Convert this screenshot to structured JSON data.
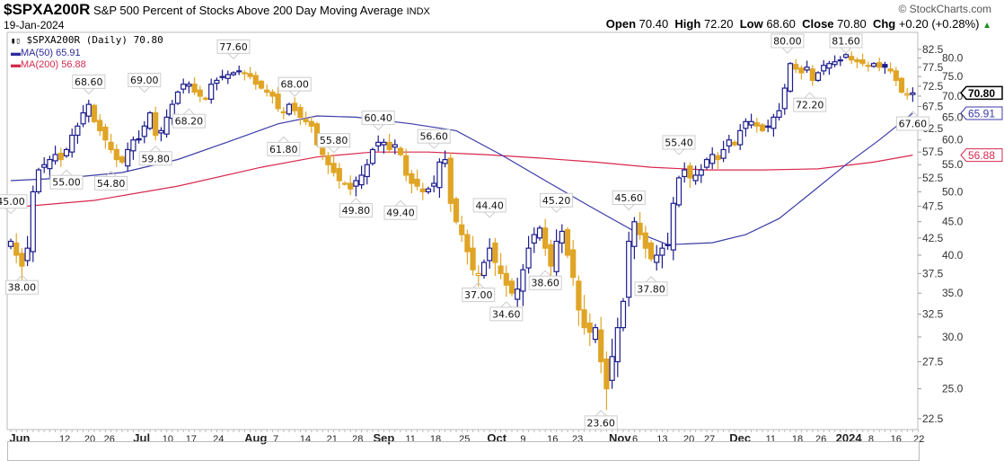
{
  "header": {
    "symbol": "$SPXA200R",
    "description": "S&P 500 Percent of Stocks Above 200 Day Moving Average",
    "exchange": "INDX",
    "date": "19-Jan-2024",
    "copyright": "© StockCharts.com",
    "open_label": "Open",
    "open": "70.40",
    "high_label": "High",
    "high": "72.20",
    "low_label": "Low",
    "low": "68.60",
    "close_label": "Close",
    "close": "70.80",
    "chg_label": "Chg",
    "chg": "+0.20 (+0.28%)",
    "chg_arrow": "▲"
  },
  "legend": {
    "price": "$SPXA200R (Daily) 70.80",
    "ma50": "MA(50) 65.91",
    "ma200": "MA(200) 56.88"
  },
  "colors": {
    "up": "#1c1c8c",
    "down": "#e0a526",
    "ma50": "#3b3ba8",
    "ma200": "#d9284f"
  },
  "chart_data": {
    "type": "candlestick",
    "title": "$SPXA200R S&P 500 Percent of Stocks Above 200 Day Moving Average",
    "yscale": "log",
    "ylim": [
      21.5,
      84
    ],
    "yticks": [
      "82.5",
      "80.0",
      "77.5",
      "75.0",
      "72.5",
      "70.0",
      "67.5",
      "65.0",
      "62.5",
      "60.0",
      "57.5",
      "55.0",
      "52.5",
      "50.0",
      "47.5",
      "45.0",
      "42.5",
      "40.0",
      "37.5",
      "35.0",
      "32.5",
      "30.0",
      "27.5",
      "25.0",
      "22.5"
    ],
    "closes": [
      42,
      40,
      38.5,
      41,
      50,
      54,
      55,
      56,
      57,
      56,
      58,
      61,
      63,
      66,
      68,
      64,
      62,
      60,
      58,
      56,
      55.5,
      58,
      60,
      60,
      63,
      66,
      61,
      62,
      65,
      68,
      71,
      73,
      73,
      71,
      70,
      69.5,
      73,
      74,
      75,
      75.5,
      76,
      76.5,
      76,
      75,
      73,
      72,
      71,
      70,
      67,
      66,
      68,
      66.5,
      65,
      64,
      63,
      59,
      57,
      55,
      53.5,
      52,
      51.5,
      50.5,
      52,
      53,
      55,
      58,
      59.5,
      59.5,
      58,
      59,
      57,
      53,
      51.5,
      51,
      50,
      50.5,
      51.5,
      55.5,
      56,
      48,
      45,
      43,
      40.5,
      38,
      37.5,
      39,
      41,
      39,
      37.5,
      36,
      35,
      35.5,
      38,
      41,
      43,
      44,
      41,
      38.5,
      42,
      43.5,
      40,
      37,
      33,
      31,
      30.5,
      31,
      27.5,
      25,
      28,
      31,
      34,
      42,
      45,
      43,
      41,
      39.5,
      40,
      41,
      41.5,
      48,
      52.5,
      54,
      52.5,
      53,
      54,
      56,
      57,
      56,
      58,
      60,
      59,
      62,
      64,
      64,
      63,
      62,
      63,
      65,
      66.5,
      72,
      78.5,
      77,
      76,
      77.5,
      74,
      76,
      78,
      78.5,
      79,
      79.5,
      81,
      79.5,
      79,
      78.5,
      78,
      78.5,
      77.5,
      77.5,
      76.5,
      74,
      71,
      70.6,
      70.8
    ],
    "last_bar": {
      "open": 70.4,
      "high": 72.2,
      "low": 68.6,
      "close": 70.8
    },
    "ma50": [
      [
        0,
        52
      ],
      [
        10,
        52.5
      ],
      [
        20,
        53.5
      ],
      [
        30,
        56
      ],
      [
        40,
        60
      ],
      [
        48,
        63.5
      ],
      [
        55,
        65.3
      ],
      [
        62,
        65
      ],
      [
        72,
        63.5
      ],
      [
        80,
        62
      ],
      [
        88,
        57
      ],
      [
        96,
        52
      ],
      [
        104,
        47.5
      ],
      [
        112,
        43.5
      ],
      [
        118,
        41.5
      ],
      [
        126,
        41.8
      ],
      [
        132,
        43
      ],
      [
        138,
        45.5
      ],
      [
        144,
        50
      ],
      [
        150,
        55
      ],
      [
        156,
        60
      ],
      [
        162,
        65.91
      ]
    ],
    "ma200": [
      [
        0,
        47.3
      ],
      [
        15,
        48.5
      ],
      [
        30,
        51
      ],
      [
        45,
        54.5
      ],
      [
        55,
        56.5
      ],
      [
        65,
        57.5
      ],
      [
        75,
        57.5
      ],
      [
        85,
        57
      ],
      [
        95,
        56.3
      ],
      [
        105,
        55.5
      ],
      [
        115,
        54.5
      ],
      [
        125,
        54
      ],
      [
        135,
        54
      ],
      [
        145,
        54.2
      ],
      [
        155,
        55.5
      ],
      [
        162,
        56.88
      ]
    ],
    "annotations": [
      {
        "i": 0,
        "v": 45.0,
        "label": "45.00",
        "pos": "above"
      },
      {
        "i": 2,
        "v": 38.0,
        "label": "38.00",
        "pos": "below"
      },
      {
        "i": 10,
        "v": 55.0,
        "label": "55.00",
        "pos": "below"
      },
      {
        "i": 14,
        "v": 68.6,
        "label": "68.60",
        "pos": "above"
      },
      {
        "i": 18,
        "v": 54.8,
        "label": "54.80",
        "pos": "below"
      },
      {
        "i": 24,
        "v": 69.0,
        "label": "69.00",
        "pos": "above"
      },
      {
        "i": 26,
        "v": 59.8,
        "label": "59.80",
        "pos": "below"
      },
      {
        "i": 32,
        "v": 68.2,
        "label": "68.20",
        "pos": "below"
      },
      {
        "i": 40,
        "v": 77.6,
        "label": "77.60",
        "pos": "above"
      },
      {
        "i": 51,
        "v": 68.0,
        "label": "68.00",
        "pos": "above"
      },
      {
        "i": 49,
        "v": 61.8,
        "label": "61.80",
        "pos": "below"
      },
      {
        "i": 58,
        "v": 55.8,
        "label": "55.80",
        "pos": "above"
      },
      {
        "i": 62,
        "v": 49.8,
        "label": "49.80",
        "pos": "below"
      },
      {
        "i": 66,
        "v": 60.4,
        "label": "60.40",
        "pos": "above"
      },
      {
        "i": 70,
        "v": 49.4,
        "label": "49.40",
        "pos": "below"
      },
      {
        "i": 76,
        "v": 56.6,
        "label": "56.60",
        "pos": "above"
      },
      {
        "i": 86,
        "v": 44.4,
        "label": "44.40",
        "pos": "above"
      },
      {
        "i": 84,
        "v": 37.0,
        "label": "37.00",
        "pos": "below"
      },
      {
        "i": 89,
        "v": 34.6,
        "label": "34.60",
        "pos": "below"
      },
      {
        "i": 98,
        "v": 45.2,
        "label": "45.20",
        "pos": "above"
      },
      {
        "i": 96,
        "v": 38.6,
        "label": "38.60",
        "pos": "below"
      },
      {
        "i": 106,
        "v": 23.6,
        "label": "23.60",
        "pos": "below"
      },
      {
        "i": 111,
        "v": 45.6,
        "label": "45.60",
        "pos": "above"
      },
      {
        "i": 115,
        "v": 37.8,
        "label": "37.80",
        "pos": "below"
      },
      {
        "i": 120,
        "v": 55.4,
        "label": "55.40",
        "pos": "above"
      },
      {
        "i": 139.5,
        "v": 80.0,
        "label": "80.00",
        "pos": "above"
      },
      {
        "i": 143.5,
        "v": 72.2,
        "label": "72.20",
        "pos": "below"
      },
      {
        "i": 150,
        "v": 81.6,
        "label": "81.60",
        "pos": "above"
      },
      {
        "i": 162,
        "v": 67.6,
        "label": "67.60",
        "pos": "below"
      }
    ],
    "price_tags": [
      {
        "v": 70.8,
        "label": "70.80",
        "series": "price"
      },
      {
        "v": 65.91,
        "label": "65.91",
        "series": "ma50"
      },
      {
        "v": 56.88,
        "label": "56.88",
        "series": "ma200"
      }
    ],
    "xticks": [
      {
        "i": 1.6,
        "label": "Jun",
        "major": true
      },
      {
        "i": 9.7,
        "label": "12"
      },
      {
        "i": 14.2,
        "label": "20"
      },
      {
        "i": 17.7,
        "label": "26"
      },
      {
        "i": 23.5,
        "label": "Jul",
        "major": true
      },
      {
        "i": 28.2,
        "label": "10"
      },
      {
        "i": 32.4,
        "label": "17"
      },
      {
        "i": 37.3,
        "label": "24"
      },
      {
        "i": 44,
        "label": "Aug",
        "major": true
      },
      {
        "i": 47.6,
        "label": "7"
      },
      {
        "i": 52.9,
        "label": "14"
      },
      {
        "i": 57.7,
        "label": "21"
      },
      {
        "i": 62.3,
        "label": "28"
      },
      {
        "i": 67,
        "label": "Sep",
        "major": true
      },
      {
        "i": 71.8,
        "label": "11"
      },
      {
        "i": 76.3,
        "label": "18"
      },
      {
        "i": 81.5,
        "label": "25"
      },
      {
        "i": 87.3,
        "label": "Oct",
        "major": true
      },
      {
        "i": 92,
        "label": "9"
      },
      {
        "i": 97.3,
        "label": "16"
      },
      {
        "i": 101.8,
        "label": "23"
      },
      {
        "i": 109.4,
        "label": "Nov",
        "major": true
      },
      {
        "i": 112.1,
        "label": "6"
      },
      {
        "i": 117,
        "label": "13"
      },
      {
        "i": 121.8,
        "label": "20"
      },
      {
        "i": 125.5,
        "label": "27"
      },
      {
        "i": 131,
        "label": "Dec",
        "major": true
      },
      {
        "i": 136.5,
        "label": "11"
      },
      {
        "i": 141.3,
        "label": "18"
      },
      {
        "i": 145.5,
        "label": "26"
      },
      {
        "i": 150.5,
        "label": "2024",
        "major": true
      },
      {
        "i": 154.5,
        "label": "8"
      },
      {
        "i": 159,
        "label": "16"
      },
      {
        "i": 163.1,
        "label": "22"
      }
    ]
  }
}
